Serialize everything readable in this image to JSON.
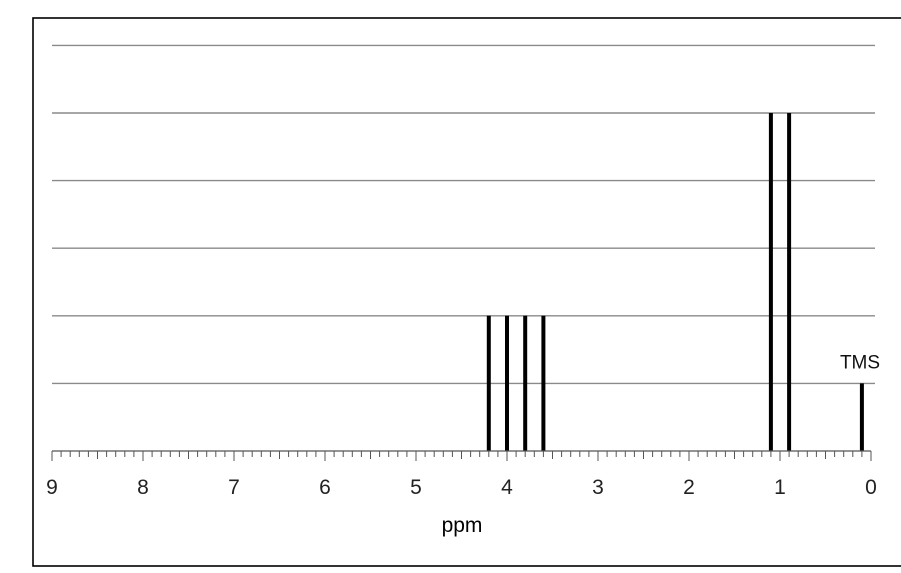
{
  "chart_data": {
    "type": "bar",
    "title": "",
    "xlabel": "ppm",
    "ylabel": "",
    "x_reversed": true,
    "xlim": [
      0,
      9
    ],
    "ylim": [
      0,
      6
    ],
    "x_major_ticks": [
      9,
      8,
      7,
      6,
      5,
      4,
      3,
      2,
      1,
      0
    ],
    "x_tick_labels": [
      "9",
      "8",
      "7",
      "6",
      "5",
      "4",
      "3",
      "2",
      "1",
      "0"
    ],
    "x_minor_step": 0.1,
    "y_gridlines": [
      1,
      2,
      3,
      4,
      5,
      6
    ],
    "grid": true,
    "legend": "none",
    "peaks": [
      {
        "ppm": 4.2,
        "height": 2
      },
      {
        "ppm": 4.0,
        "height": 2
      },
      {
        "ppm": 3.8,
        "height": 2
      },
      {
        "ppm": 3.6,
        "height": 2
      },
      {
        "ppm": 1.1,
        "height": 5
      },
      {
        "ppm": 0.9,
        "height": 5
      },
      {
        "ppm": 0.1,
        "height": 1,
        "label": "TMS"
      }
    ],
    "colors": {
      "peak": "#000000",
      "grid": "#8a8a8a",
      "axis": "#555555"
    }
  }
}
